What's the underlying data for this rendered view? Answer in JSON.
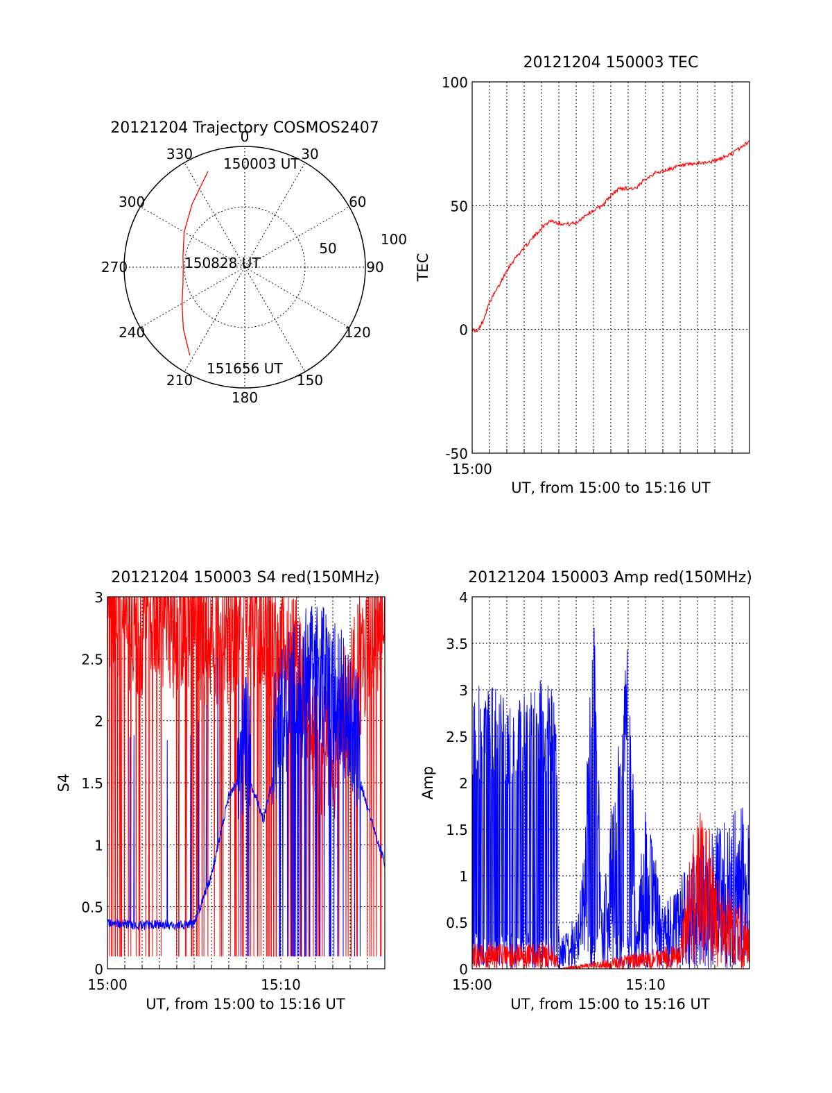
{
  "chart_data": [
    {
      "type": "polar",
      "title": "20121204 Trajectory COSMOS2407",
      "angle_labels": [
        "0",
        "30",
        "60",
        "90",
        "120",
        "150",
        "180",
        "210",
        "240",
        "270",
        "300",
        "330"
      ],
      "radius_labels": [
        "50",
        "100"
      ],
      "radius_range": [
        0,
        100
      ],
      "grid": true,
      "series": [
        {
          "color": "#ff0000",
          "points": [
            {
              "az": 339,
              "r": 85
            },
            {
              "az": 320,
              "r": 68
            },
            {
              "az": 300,
              "r": 58
            },
            {
              "az": 280,
              "r": 52
            },
            {
              "az": 270,
              "r": 51
            },
            {
              "az": 255,
              "r": 53
            },
            {
              "az": 240,
              "r": 60
            },
            {
              "az": 225,
              "r": 72
            },
            {
              "az": 212,
              "r": 86
            }
          ]
        }
      ],
      "annotations": [
        "150003 UT",
        "150828 UT",
        "151656 UT"
      ]
    },
    {
      "type": "line",
      "title": "20121204 150003 TEC",
      "xlabel": "UT, from 15:00 to 15:16 UT",
      "ylabel": "TEC",
      "xlim": [
        0,
        16
      ],
      "ylim": [
        -50,
        100
      ],
      "x_tick_labels": [
        "15:00"
      ],
      "y_tick_labels": [
        "-50",
        "0",
        "50",
        "100"
      ],
      "grid": true,
      "series": [
        {
          "color": "#ff0000",
          "points": [
            [
              0,
              0
            ],
            [
              0.3,
              -1
            ],
            [
              0.6,
              3
            ],
            [
              1,
              11
            ],
            [
              1.5,
              17
            ],
            [
              2,
              24
            ],
            [
              2.5,
              29
            ],
            [
              3,
              33
            ],
            [
              3.5,
              37
            ],
            [
              4,
              41
            ],
            [
              4.5,
              44
            ],
            [
              5,
              43
            ],
            [
              5.5,
              42.5
            ],
            [
              6,
              43
            ],
            [
              6.5,
              46
            ],
            [
              7,
              48
            ],
            [
              7.5,
              50
            ],
            [
              8,
              54
            ],
            [
              8.5,
              57
            ],
            [
              9,
              57
            ],
            [
              9.5,
              57
            ],
            [
              10,
              61
            ],
            [
              10.5,
              63
            ],
            [
              11,
              64
            ],
            [
              12,
              66
            ],
            [
              13,
              67
            ],
            [
              14,
              68
            ],
            [
              15,
              71
            ],
            [
              16,
              76
            ]
          ]
        }
      ]
    },
    {
      "type": "line",
      "title": "20121204 150003 S4 red(150MHz)",
      "xlabel": "UT, from 15:00 to 15:16 UT",
      "ylabel": "S4",
      "xlim": [
        0,
        16
      ],
      "ylim": [
        0,
        3
      ],
      "x_tick_labels": [
        "15:00",
        "15:10"
      ],
      "y_tick_labels": [
        "0",
        "0.5",
        "1",
        "1.5",
        "2",
        "2.5",
        "3"
      ],
      "grid": true,
      "series": [
        {
          "color": "#ff0000",
          "points": [
            [
              0,
              2.7
            ],
            [
              1,
              2.6
            ],
            [
              2,
              2.5
            ],
            [
              3,
              2.6
            ],
            [
              4,
              2.5
            ],
            [
              5,
              2.6
            ],
            [
              6,
              2.4
            ],
            [
              7,
              2.5
            ],
            [
              8,
              2.6
            ],
            [
              9,
              2.5
            ],
            [
              10,
              2.4
            ],
            [
              11,
              2.2
            ],
            [
              12,
              1.6
            ],
            [
              13,
              1.5
            ],
            [
              14,
              2.0
            ],
            [
              15,
              2.4
            ],
            [
              16,
              2.6
            ]
          ]
        },
        {
          "color": "#0000ff",
          "points": [
            [
              0,
              0.37
            ],
            [
              1,
              0.36
            ],
            [
              2,
              0.35
            ],
            [
              3,
              0.36
            ],
            [
              4,
              0.35
            ],
            [
              5,
              0.36
            ],
            [
              6,
              0.75
            ],
            [
              7,
              1.4
            ],
            [
              8,
              1.6
            ],
            [
              9,
              1.2
            ],
            [
              10,
              1.8
            ],
            [
              11,
              2.0
            ],
            [
              12,
              2.2
            ],
            [
              13,
              2.0
            ],
            [
              14,
              1.8
            ],
            [
              15,
              1.3
            ],
            [
              16,
              0.85
            ]
          ]
        }
      ]
    },
    {
      "type": "line",
      "title": "20121204 150003 Amp red(150MHz)",
      "xlabel": "UT, from 15:00 to 15:16 UT",
      "ylabel": "Amp",
      "xlim": [
        0,
        16
      ],
      "ylim": [
        0,
        4
      ],
      "x_tick_labels": [
        "15:00",
        "15:10"
      ],
      "y_tick_labels": [
        "0",
        "0.5",
        "1",
        "1.5",
        "2",
        "2.5",
        "3",
        "3.5",
        "4"
      ],
      "grid": true,
      "series": [
        {
          "color": "#0000ff",
          "points": [
            [
              0,
              2.5
            ],
            [
              1,
              2.6
            ],
            [
              2,
              2.4
            ],
            [
              3,
              2.5
            ],
            [
              4,
              2.6
            ],
            [
              4.8,
              2.5
            ],
            [
              5,
              0.3
            ],
            [
              6,
              0.4
            ],
            [
              6.5,
              1.0
            ],
            [
              7,
              3.6
            ],
            [
              7.5,
              0.4
            ],
            [
              9,
              3.0
            ],
            [
              9.5,
              0.4
            ],
            [
              10,
              1.4
            ],
            [
              11,
              0.5
            ],
            [
              12,
              0.7
            ],
            [
              13,
              0.9
            ],
            [
              14,
              1.1
            ],
            [
              15,
              1.2
            ],
            [
              16,
              1.3
            ]
          ]
        },
        {
          "color": "#ff0000",
          "points": [
            [
              0,
              0.2
            ],
            [
              1,
              0.2
            ],
            [
              2,
              0.2
            ],
            [
              3,
              0.2
            ],
            [
              4,
              0.2
            ],
            [
              4.8,
              0.2
            ],
            [
              5,
              0
            ],
            [
              12,
              0.2
            ],
            [
              12.5,
              0.9
            ],
            [
              13,
              1.2
            ],
            [
              13.5,
              1.3
            ],
            [
              14,
              0.8
            ],
            [
              15,
              0.6
            ],
            [
              16,
              0.4
            ]
          ]
        }
      ]
    }
  ]
}
